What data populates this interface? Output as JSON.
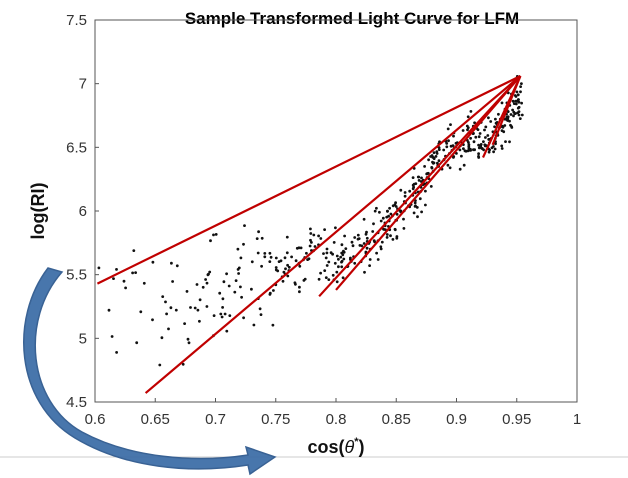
{
  "chart_data": {
    "type": "scatter",
    "title": "Sample Transformed Light Curve for LFM",
    "xlabel_prefix": "cos(",
    "xlabel_symbol": "θ",
    "xlabel_sup": "*",
    "xlabel_suffix": ")",
    "ylabel": "log(RI)",
    "xlim": [
      0.6,
      1.0
    ],
    "ylim": [
      4.5,
      7.5
    ],
    "xticks": [
      "0.6",
      "0.65",
      "0.7",
      "0.75",
      "0.8",
      "0.85",
      "0.9",
      "0.95",
      "1"
    ],
    "yticks": [
      "4.5",
      "5",
      "5.5",
      "6",
      "6.5",
      "7",
      "7.5"
    ],
    "grid": false,
    "point_color": "#111111",
    "line_color": "#c00000",
    "arrow_color": "#3f6fa8",
    "series": [
      {
        "type": "scatter",
        "trend": [
          [
            0.6,
            5.45
          ],
          [
            0.62,
            5.35
          ],
          [
            0.65,
            5.25
          ],
          [
            0.7,
            5.35
          ],
          [
            0.75,
            5.5
          ],
          [
            0.78,
            5.65
          ],
          [
            0.8,
            5.6
          ],
          [
            0.83,
            5.75
          ],
          [
            0.86,
            6.05
          ],
          [
            0.88,
            6.35
          ],
          [
            0.9,
            6.55
          ],
          [
            0.93,
            6.6
          ],
          [
            0.95,
            6.85
          ]
        ],
        "point_count": 520
      },
      {
        "type": "lines",
        "segments": [
          [
            [
              0.602,
              5.43
            ],
            [
              0.953,
              7.06
            ]
          ],
          [
            [
              0.642,
              4.57
            ],
            [
              0.953,
              7.06
            ]
          ],
          [
            [
              0.786,
              5.33
            ],
            [
              0.953,
              7.06
            ]
          ],
          [
            [
              0.8,
              5.38
            ],
            [
              0.953,
              7.06
            ]
          ],
          [
            [
              0.922,
              6.42
            ],
            [
              0.953,
              7.06
            ]
          ],
          [
            [
              0.93,
              6.52
            ],
            [
              0.953,
              7.06
            ]
          ]
        ]
      }
    ]
  }
}
